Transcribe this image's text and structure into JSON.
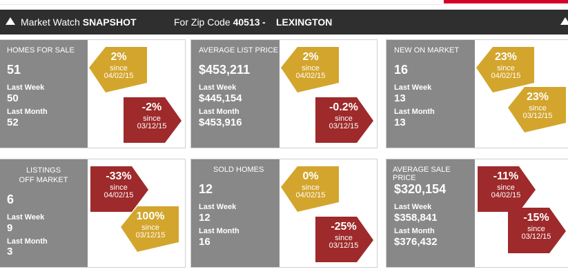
{
  "header": {
    "title_plain": "Market Watch ",
    "title_bold": "SNAPSHOT",
    "zip_label": "For Zip Code ",
    "zip": "40513",
    "separator": "-",
    "city": "LEXINGTON"
  },
  "colors": {
    "gold": "#d3a52d",
    "red": "#9e2a2b",
    "panel_gray": "#888888",
    "header_bg": "#2f2f2f"
  },
  "cards": [
    {
      "title": "HOMES FOR SALE",
      "value": "51",
      "last_week_label": "Last Week",
      "last_week": "50",
      "last_month_label": "Last Month",
      "last_month": "52",
      "week_change": {
        "pct": "2%",
        "since": "since",
        "date": "04/02/15",
        "color": "gold",
        "direction": "up"
      },
      "month_change": {
        "pct": "-2%",
        "since": "since",
        "date": "03/12/15",
        "color": "red",
        "direction": "down"
      }
    },
    {
      "title": "AVERAGE LIST PRICE",
      "value": "$453,211",
      "last_week_label": "Last Week",
      "last_week": "$445,154",
      "last_month_label": "Last Month",
      "last_month": "$453,916",
      "week_change": {
        "pct": "2%",
        "since": "since",
        "date": "04/02/15",
        "color": "gold",
        "direction": "up"
      },
      "month_change": {
        "pct": "-0.2%",
        "since": "since",
        "date": "03/12/15",
        "color": "red",
        "direction": "down"
      }
    },
    {
      "title": "NEW ON MARKET",
      "value": "16",
      "last_week_label": "Last Week",
      "last_week": "13",
      "last_month_label": "Last Month",
      "last_month": "13",
      "week_change": {
        "pct": "23%",
        "since": "since",
        "date": "04/02/15",
        "color": "gold",
        "direction": "up"
      },
      "month_change": {
        "pct": "23%",
        "since": "since",
        "date": "03/12/15",
        "color": "gold",
        "direction": "up"
      }
    },
    {
      "title": "LISTINGS OFF MARKET",
      "value": "6",
      "last_week_label": "Last Week",
      "last_week": "9",
      "last_month_label": "Last Month",
      "last_month": "3",
      "week_change": {
        "pct": "-33%",
        "since": "since",
        "date": "04/02/15",
        "color": "red",
        "direction": "down"
      },
      "month_change": {
        "pct": "100%",
        "since": "since",
        "date": "03/12/15",
        "color": "gold",
        "direction": "up"
      }
    },
    {
      "title": "SOLD HOMES",
      "value": "12",
      "last_week_label": "Last Week",
      "last_week": "12",
      "last_month_label": "Last Month",
      "last_month": "16",
      "week_change": {
        "pct": "0%",
        "since": "since",
        "date": "04/02/15",
        "color": "gold",
        "direction": "up"
      },
      "month_change": {
        "pct": "-25%",
        "since": "since",
        "date": "03/12/15",
        "color": "red",
        "direction": "down"
      }
    },
    {
      "title": "AVERAGE SALE PRICE",
      "value": "$320,154",
      "last_week_label": "Last Week",
      "last_week": "$358,841",
      "last_month_label": "Last Month",
      "last_month": "$376,432",
      "week_change": {
        "pct": "-11%",
        "since": "since",
        "date": "04/02/15",
        "color": "red",
        "direction": "down"
      },
      "month_change": {
        "pct": "-15%",
        "since": "since",
        "date": "03/12/15",
        "color": "red",
        "direction": "down"
      }
    }
  ]
}
